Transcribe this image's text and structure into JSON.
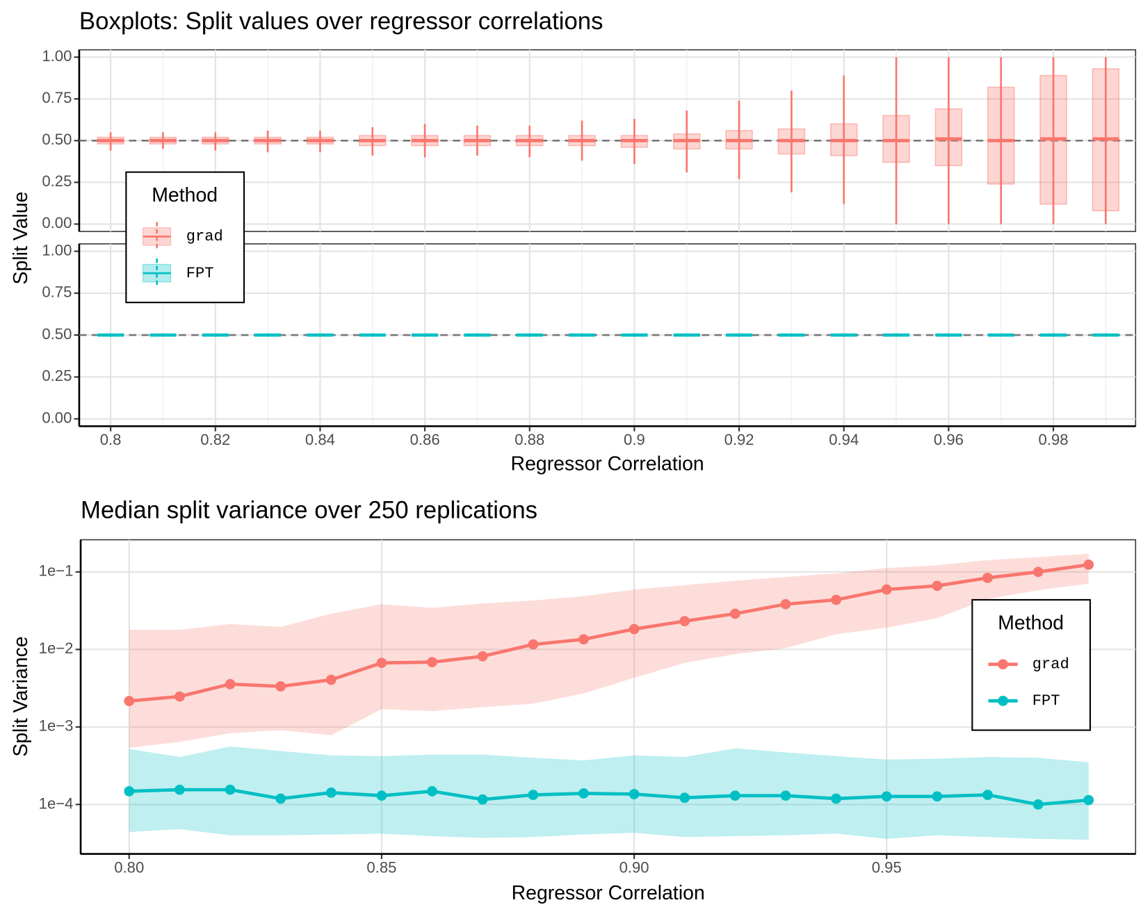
{
  "chart_data": [
    {
      "type": "box",
      "title": "Boxplots: Split values over regressor correlations",
      "x_label": "Regressor Correlation",
      "y_label": "Split Value",
      "legend_title": "Method",
      "legend": "left",
      "x": [
        0.8,
        0.81,
        0.82,
        0.83,
        0.84,
        0.85,
        0.86,
        0.87,
        0.88,
        0.89,
        0.9,
        0.91,
        0.92,
        0.93,
        0.94,
        0.95,
        0.96,
        0.97,
        0.98,
        0.99
      ],
      "xlim": [
        0.794,
        0.9957
      ],
      "xticks": [
        0.8,
        0.82,
        0.84,
        0.86,
        0.88,
        0.9,
        0.92,
        0.94,
        0.96,
        0.98
      ],
      "ylim": [
        -0.044,
        1.044
      ],
      "yticks": [
        {
          "value": 0,
          "label": "0.00"
        },
        {
          "value": 0.25,
          "label": "0.25"
        },
        {
          "value": 0.5,
          "label": "0.50"
        },
        {
          "value": 0.75,
          "label": "0.75"
        },
        {
          "value": 1,
          "label": "1.00"
        }
      ],
      "hline": 0.5,
      "grid": true,
      "series": [
        {
          "name": "grad",
          "color": "#f8766d",
          "low": [
            0.44,
            0.45,
            0.44,
            0.43,
            0.43,
            0.41,
            0.4,
            0.41,
            0.4,
            0.38,
            0.36,
            0.31,
            0.27,
            0.19,
            0.12,
            0.0,
            0.0,
            0.0,
            0.0,
            0.0
          ],
          "q1": [
            0.48,
            0.48,
            0.48,
            0.48,
            0.48,
            0.47,
            0.47,
            0.47,
            0.47,
            0.47,
            0.46,
            0.45,
            0.45,
            0.42,
            0.41,
            0.37,
            0.35,
            0.24,
            0.12,
            0.08
          ],
          "median": [
            0.5,
            0.5,
            0.5,
            0.5,
            0.5,
            0.5,
            0.5,
            0.5,
            0.5,
            0.5,
            0.5,
            0.5,
            0.5,
            0.5,
            0.5,
            0.5,
            0.51,
            0.5,
            0.51,
            0.51
          ],
          "q3": [
            0.52,
            0.52,
            0.52,
            0.52,
            0.52,
            0.53,
            0.53,
            0.53,
            0.53,
            0.53,
            0.53,
            0.54,
            0.56,
            0.57,
            0.6,
            0.65,
            0.69,
            0.82,
            0.89,
            0.93
          ],
          "high": [
            0.55,
            0.55,
            0.55,
            0.56,
            0.56,
            0.58,
            0.6,
            0.59,
            0.59,
            0.62,
            0.63,
            0.68,
            0.74,
            0.8,
            0.89,
            1.0,
            1.0,
            1.0,
            1.0,
            1.0
          ]
        },
        {
          "name": "FPT",
          "color": "#00bfc4",
          "low": [
            0.49,
            0.49,
            0.49,
            0.49,
            0.49,
            0.49,
            0.49,
            0.49,
            0.49,
            0.49,
            0.49,
            0.49,
            0.49,
            0.49,
            0.49,
            0.49,
            0.49,
            0.49,
            0.49,
            0.49
          ],
          "q1": [
            0.5,
            0.5,
            0.5,
            0.5,
            0.5,
            0.5,
            0.5,
            0.5,
            0.5,
            0.5,
            0.5,
            0.5,
            0.5,
            0.5,
            0.5,
            0.5,
            0.5,
            0.5,
            0.5,
            0.5
          ],
          "median": [
            0.5,
            0.5,
            0.5,
            0.5,
            0.5,
            0.5,
            0.5,
            0.5,
            0.5,
            0.5,
            0.5,
            0.5,
            0.5,
            0.5,
            0.5,
            0.5,
            0.5,
            0.5,
            0.5,
            0.5
          ],
          "q3": [
            0.5,
            0.5,
            0.5,
            0.5,
            0.5,
            0.5,
            0.5,
            0.5,
            0.5,
            0.5,
            0.5,
            0.5,
            0.5,
            0.5,
            0.5,
            0.5,
            0.5,
            0.5,
            0.5,
            0.5
          ],
          "high": [
            0.51,
            0.51,
            0.51,
            0.51,
            0.51,
            0.51,
            0.51,
            0.51,
            0.51,
            0.51,
            0.51,
            0.51,
            0.51,
            0.51,
            0.51,
            0.51,
            0.51,
            0.51,
            0.51,
            0.51
          ]
        }
      ]
    },
    {
      "type": "line",
      "title": "Median split variance over 250 replications",
      "x_label": "Regressor Correlation",
      "y_label": "Split Variance",
      "legend_title": "Method",
      "legend": "right",
      "log_y": true,
      "grid": true,
      "x": [
        0.8,
        0.81,
        0.82,
        0.83,
        0.84,
        0.85,
        0.86,
        0.87,
        0.88,
        0.89,
        0.9,
        0.91,
        0.92,
        0.93,
        0.94,
        0.95,
        0.96,
        0.97,
        0.98,
        0.99
      ],
      "xlim": [
        0.7904,
        0.9993
      ],
      "xticks": [
        {
          "value": 0.8,
          "label": "0.80"
        },
        {
          "value": 0.85,
          "label": "0.85"
        },
        {
          "value": 0.9,
          "label": "0.90"
        },
        {
          "value": 0.95,
          "label": "0.95"
        }
      ],
      "ylim": [
        2.3e-05,
        0.26
      ],
      "yticks": [
        {
          "value": 0.0001,
          "label": "1e−4"
        },
        {
          "value": 0.001,
          "label": "1e−3"
        },
        {
          "value": 0.01,
          "label": "1e−2"
        },
        {
          "value": 0.1,
          "label": "1e−1"
        }
      ],
      "series": [
        {
          "name": "grad",
          "color": "#f8766d",
          "values": [
            0.00216,
            0.00247,
            0.00357,
            0.00334,
            0.00406,
            0.00671,
            0.00686,
            0.00816,
            0.0116,
            0.0135,
            0.0183,
            0.0232,
            0.0289,
            0.0384,
            0.0437,
            0.0593,
            0.0661,
            0.0839,
            0.1,
            0.124
          ],
          "lower": [
            0.00054,
            0.00064,
            0.00083,
            0.00091,
            0.00078,
            0.0017,
            0.0016,
            0.0018,
            0.002,
            0.0027,
            0.0043,
            0.0067,
            0.0087,
            0.0104,
            0.0157,
            0.0191,
            0.0253,
            0.0447,
            0.058,
            0.0706
          ],
          "upper": [
            0.0179,
            0.0179,
            0.0213,
            0.0195,
            0.0289,
            0.0384,
            0.0344,
            0.0392,
            0.0428,
            0.0487,
            0.0593,
            0.0675,
            0.077,
            0.086,
            0.096,
            0.112,
            0.122,
            0.142,
            0.155,
            0.172
          ]
        },
        {
          "name": "FPT",
          "color": "#00bfc4",
          "values": [
            0.000148,
            0.000155,
            0.000155,
            0.000119,
            0.000142,
            0.00013,
            0.000148,
            0.000116,
            0.000133,
            0.000139,
            0.000136,
            0.000122,
            0.00013,
            0.00013,
            0.000119,
            0.000127,
            0.000127,
            0.000133,
            0.0001,
            0.000114
          ],
          "lower": [
            4.4e-05,
            4.8e-05,
            4e-05,
            4e-05,
            4.1e-05,
            4.2e-05,
            3.9e-05,
            3.7e-05,
            3.8e-05,
            4.1e-05,
            4.3e-05,
            3.8e-05,
            3.9e-05,
            4e-05,
            4.2e-05,
            3.6e-05,
            4e-05,
            3.8e-05,
            3.6e-05,
            3.5e-05
          ],
          "upper": [
            0.00052,
            0.00041,
            0.00056,
            0.00049,
            0.00043,
            0.00042,
            0.00044,
            0.00044,
            0.0004,
            0.00037,
            0.00043,
            0.00041,
            0.00053,
            0.00047,
            0.00042,
            0.00038,
            0.00039,
            0.00041,
            0.0004,
            0.00035
          ]
        }
      ]
    }
  ]
}
